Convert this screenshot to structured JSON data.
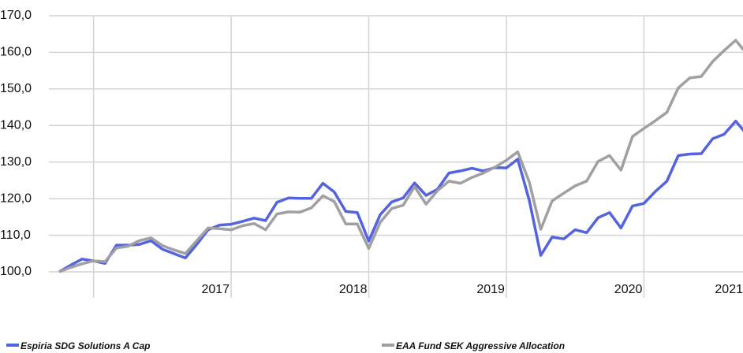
{
  "chart_data": {
    "type": "line",
    "x": [
      2016.75,
      2016.833,
      2016.917,
      2017.0,
      2017.083,
      2017.167,
      2017.25,
      2017.333,
      2017.417,
      2017.5,
      2017.583,
      2017.667,
      2017.75,
      2017.833,
      2017.917,
      2018.0,
      2018.083,
      2018.167,
      2018.25,
      2018.333,
      2018.417,
      2018.5,
      2018.583,
      2018.667,
      2018.75,
      2018.833,
      2018.917,
      2019.0,
      2019.083,
      2019.167,
      2019.25,
      2019.333,
      2019.417,
      2019.5,
      2019.583,
      2019.667,
      2019.75,
      2019.833,
      2019.917,
      2020.0,
      2020.083,
      2020.167,
      2020.25,
      2020.333,
      2020.417,
      2020.5,
      2020.583,
      2020.667,
      2020.75,
      2020.833,
      2020.917,
      2021.0,
      2021.083,
      2021.167,
      2021.25,
      2021.333,
      2021.417,
      2021.5,
      2021.583,
      2021.667,
      2021.75
    ],
    "series": [
      {
        "name": "Espiria SDG Solutions A Cap",
        "color": "#5463e0",
        "values": [
          100.0,
          101.8,
          103.5,
          103.0,
          102.3,
          107.3,
          107.3,
          107.5,
          108.5,
          106.2,
          105.0,
          103.8,
          107.5,
          111.5,
          112.8,
          113.0,
          113.8,
          114.7,
          114.0,
          119.0,
          120.2,
          120.1,
          120.1,
          124.2,
          121.8,
          116.5,
          116.2,
          108.4,
          115.6,
          119.1,
          120.2,
          124.3,
          120.9,
          122.6,
          127.0,
          127.6,
          128.3,
          127.6,
          128.5,
          128.4,
          130.8,
          119.5,
          104.5,
          109.5,
          109.0,
          111.5,
          110.7,
          114.8,
          116.2,
          112.0,
          118.0,
          118.7,
          122.0,
          124.8,
          131.8,
          132.2,
          132.3,
          136.4,
          137.6,
          141.2,
          137.5
        ]
      },
      {
        "name": "EAA Fund SEK Aggressive Allocation",
        "color": "#a0a0a4",
        "values": [
          100.0,
          101.2,
          102.2,
          103.0,
          102.8,
          106.5,
          107.0,
          108.5,
          109.3,
          107.2,
          106.0,
          105.0,
          108.5,
          112.0,
          111.8,
          111.5,
          112.6,
          113.2,
          111.5,
          115.8,
          116.4,
          116.3,
          117.5,
          120.8,
          119.2,
          113.1,
          113.1,
          106.4,
          113.5,
          117.3,
          118.2,
          123.3,
          118.5,
          122.2,
          124.8,
          124.2,
          125.8,
          127.0,
          128.6,
          130.5,
          132.8,
          124.5,
          111.6,
          119.4,
          121.5,
          123.5,
          124.8,
          130.2,
          131.8,
          127.8,
          137.0,
          139.2,
          141.3,
          143.6,
          150.3,
          153.0,
          153.4,
          157.5,
          160.5,
          163.3,
          159.5
        ]
      }
    ],
    "xlim": [
      2016.75,
      2021.72
    ],
    "xticks": [
      2017,
      2018,
      2019,
      2020,
      2021
    ],
    "ylim": [
      100,
      170
    ],
    "yticks": [
      {
        "value": 100,
        "label": "100,0"
      },
      {
        "value": 110,
        "label": "110,0"
      },
      {
        "value": 120,
        "label": "120,0"
      },
      {
        "value": 130,
        "label": "130,0"
      },
      {
        "value": 140,
        "label": "140,0"
      },
      {
        "value": 150,
        "label": "150,0"
      },
      {
        "value": 160,
        "label": "160,0"
      },
      {
        "value": 170,
        "label": "170,0"
      }
    ],
    "grid": true
  }
}
